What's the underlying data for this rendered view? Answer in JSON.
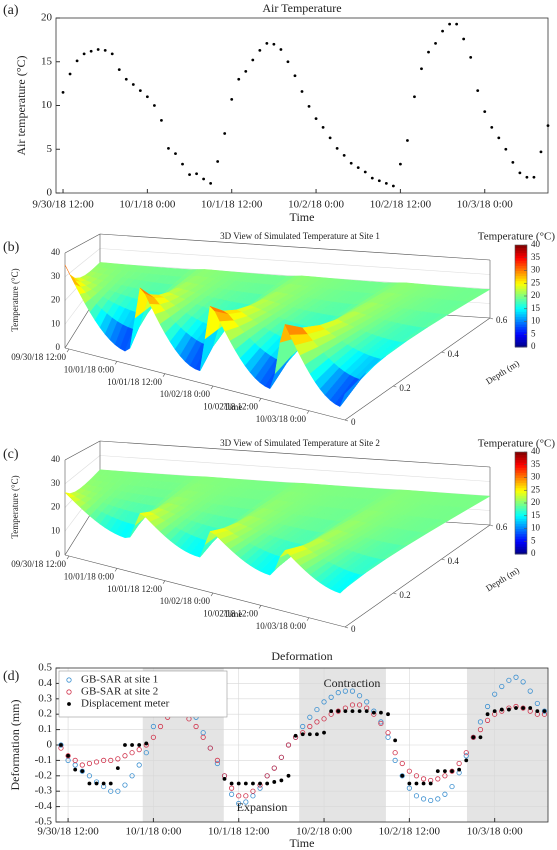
{
  "chart_data": [
    {
      "type": "scatter",
      "label": "(a)",
      "title": "Air Temperature",
      "xlabel": "Time",
      "ylabel": "Air temperature (°C)",
      "color": "#000000",
      "x": [
        12,
        13,
        14,
        15,
        16,
        17,
        18,
        19,
        20,
        21,
        22,
        23,
        24,
        25,
        26,
        27,
        28,
        29,
        30,
        31,
        32,
        33,
        34,
        35,
        36,
        37,
        38,
        39,
        40,
        41,
        42,
        43,
        44,
        45,
        46,
        47,
        48,
        49,
        50,
        51,
        52,
        53,
        54,
        55,
        56,
        57,
        58,
        59,
        60,
        61,
        62,
        63,
        64,
        65,
        66,
        67,
        68,
        69,
        70,
        71,
        72,
        73,
        74,
        75,
        76,
        77,
        78,
        79,
        80,
        81
      ],
      "values": [
        11.5,
        13.6,
        15.1,
        15.9,
        16.2,
        16.4,
        16.3,
        15.9,
        14.1,
        13.0,
        12.4,
        11.7,
        11.0,
        10.0,
        8.3,
        5.1,
        4.5,
        3.3,
        2.1,
        2.2,
        1.6,
        1.1,
        3.6,
        6.8,
        10.7,
        13.0,
        13.9,
        15.2,
        16.3,
        17.1,
        17.0,
        16.4,
        15.0,
        13.4,
        11.6,
        9.9,
        8.5,
        7.5,
        6.3,
        5.1,
        4.3,
        3.4,
        2.9,
        2.4,
        1.7,
        1.4,
        1.1,
        0.8,
        3.3,
        6.0,
        11.0,
        14.2,
        16.1,
        17.1,
        18.5,
        19.3,
        19.3,
        17.6,
        15.5,
        11.7,
        9.3,
        7.5,
        6.3,
        5.0,
        3.5,
        2.3,
        1.8,
        1.8,
        4.7,
        7.7
      ],
      "xlim": [
        11,
        81
      ],
      "ylim": [
        0,
        20
      ],
      "xticks": [
        {
          "value": 12,
          "label": "9/30/18 12:00"
        },
        {
          "value": 24,
          "label": "10/1/18 0:00"
        },
        {
          "value": 36,
          "label": "10/1/18 12:00"
        },
        {
          "value": 48,
          "label": "10/2/18 0:00"
        },
        {
          "value": 60,
          "label": "10/2/18 12:00"
        },
        {
          "value": 72,
          "label": "10/3/18 0:00"
        }
      ],
      "yticks": [
        0,
        5,
        10,
        15,
        20
      ]
    },
    {
      "type": "surface3d",
      "label": "(b)",
      "title": "3D View of Simulated Temperature at Site 1",
      "xlabel": "Time",
      "ylabel": "Depth (m)",
      "zlabel": "Temperature (°C)",
      "colorbar_label": "Temperature (°C)",
      "colormap": "jet",
      "xlim": [
        11,
        81
      ],
      "xticks": [
        {
          "value": 12,
          "label": "09/30/18 12:00"
        },
        {
          "value": 24,
          "label": "10/01/18 0:00"
        },
        {
          "value": 36,
          "label": "10/01/18 12:00"
        },
        {
          "value": 48,
          "label": "10/02/18 0:00"
        },
        {
          "value": 60,
          "label": "10/02/18 12:00"
        },
        {
          "value": 72,
          "label": "10/03/18 0:00"
        }
      ],
      "ylim": [
        0,
        0.6
      ],
      "yticks": [
        0,
        0.2,
        0.4,
        0.6
      ],
      "zlim": [
        0,
        40
      ],
      "zticks": [
        0,
        10,
        20,
        30,
        40
      ],
      "clim": [
        0,
        40
      ],
      "cticks": [
        0,
        5,
        10,
        15,
        20,
        25,
        30,
        35,
        40
      ]
    },
    {
      "type": "surface3d",
      "label": "(c)",
      "title": "3D View of Simulated Temperature at Site 2",
      "xlabel": "Time",
      "ylabel": "Depth (m)",
      "zlabel": "Temperature (°C)",
      "colorbar_label": "Temperature (°C)",
      "colormap": "jet",
      "xlim": [
        11,
        81
      ],
      "xticks": [
        {
          "value": 12,
          "label": "09/30/18 12:00"
        },
        {
          "value": 24,
          "label": "10/01/18 0:00"
        },
        {
          "value": 36,
          "label": "10/01/18 12:00"
        },
        {
          "value": 48,
          "label": "10/02/18 0:00"
        },
        {
          "value": 60,
          "label": "10/02/18 12:00"
        },
        {
          "value": 72,
          "label": "10/03/18 0:00"
        }
      ],
      "ylim": [
        0,
        0.6
      ],
      "yticks": [
        0,
        0.2,
        0.4,
        0.6
      ],
      "zlim": [
        0,
        40
      ],
      "zticks": [
        0,
        10,
        20,
        30,
        40
      ],
      "clim": [
        0,
        40
      ],
      "cticks": [
        0,
        5,
        10,
        15,
        20,
        25,
        30,
        35,
        40
      ]
    },
    {
      "type": "scatter",
      "label": "(d)",
      "title": "Deformation",
      "xlabel": "Time",
      "ylabel": "Deformation (mm)",
      "grid": true,
      "legend": "upper left",
      "annotations": [
        "Contraction",
        "Expansion"
      ],
      "x": [
        11,
        12,
        13,
        14,
        15,
        16,
        17,
        18,
        19,
        20,
        21,
        22,
        23,
        24,
        25,
        26,
        27,
        28,
        29,
        30,
        31,
        32,
        33,
        34,
        35,
        36,
        37,
        38,
        39,
        40,
        41,
        42,
        43,
        44,
        45,
        46,
        47,
        48,
        49,
        50,
        51,
        52,
        53,
        54,
        55,
        56,
        57,
        58,
        59,
        60,
        61,
        62,
        63,
        64,
        65,
        66,
        67,
        68,
        69,
        70,
        71,
        72,
        73,
        74,
        75,
        76,
        77,
        78,
        79
      ],
      "series": [
        {
          "name": "GB-SAR at site 1",
          "color": "#3a8fd0",
          "marker": "open",
          "values": [
            0,
            -0.1,
            -0.13,
            -0.17,
            -0.2,
            -0.24,
            -0.27,
            -0.3,
            -0.3,
            -0.26,
            -0.2,
            -0.13,
            -0.05,
            0.12,
            0.25,
            0.33,
            0.38,
            0.34,
            0.27,
            0.18,
            0.08,
            -0.02,
            -0.12,
            -0.2,
            -0.32,
            -0.38,
            -0.37,
            -0.33,
            -0.28,
            -0.2,
            -0.15,
            -0.08,
            0,
            0.05,
            0.12,
            0.18,
            0.23,
            0.28,
            0.31,
            0.34,
            0.35,
            0.35,
            0.32,
            0.28,
            0.22,
            0.15,
            0.05,
            -0.1,
            -0.2,
            -0.28,
            -0.33,
            -0.35,
            -0.36,
            -0.35,
            -0.32,
            -0.27,
            -0.18,
            -0.07,
            0.05,
            0.15,
            0.25,
            0.33,
            0.38,
            0.42,
            0.44,
            0.41,
            0.35,
            0.27,
            0.22
          ]
        },
        {
          "name": "GB-SAR at site 2",
          "color": "#d0324b",
          "marker": "open",
          "values": [
            -0.02,
            -0.07,
            -0.1,
            -0.13,
            -0.12,
            -0.11,
            -0.1,
            -0.1,
            -0.09,
            -0.07,
            -0.05,
            -0.03,
            0,
            0.05,
            0.12,
            0.18,
            0.2,
            0.2,
            0.17,
            0.12,
            0.05,
            -0.02,
            -0.1,
            -0.2,
            -0.28,
            -0.33,
            -0.33,
            -0.3,
            -0.26,
            -0.2,
            -0.15,
            -0.08,
            0,
            0.05,
            0.08,
            0.12,
            0.15,
            0.17,
            0.2,
            0.22,
            0.24,
            0.26,
            0.26,
            0.24,
            0.2,
            0.14,
            0.08,
            -0.05,
            -0.12,
            -0.17,
            -0.2,
            -0.22,
            -0.23,
            -0.22,
            -0.2,
            -0.17,
            -0.12,
            -0.05,
            0.05,
            0.1,
            0.16,
            0.2,
            0.22,
            0.24,
            0.25,
            0.24,
            0.22,
            0.2,
            0.2
          ]
        },
        {
          "name": "Displacement meter",
          "color": "#000000",
          "marker": "filled",
          "values": [
            0,
            -0.07,
            -0.16,
            -0.17,
            -0.25,
            -0.25,
            -0.25,
            -0.25,
            -0.15,
            0,
            0,
            0,
            0.01,
            0.23,
            0.23,
            0.23,
            0.24,
            0.24,
            0.24,
            0.25,
            0.26,
            0.26,
            0.26,
            -0.22,
            -0.25,
            -0.25,
            -0.25,
            -0.25,
            -0.25,
            -0.25,
            -0.24,
            -0.23,
            -0.2,
            0.06,
            0.07,
            0.07,
            0.07,
            0.08,
            0.22,
            0.22,
            0.22,
            0.22,
            0.22,
            0.22,
            0.21,
            0.21,
            0.2,
            0.03,
            -0.2,
            -0.25,
            -0.25,
            -0.25,
            -0.25,
            -0.17,
            -0.17,
            -0.17,
            -0.16,
            -0.1,
            0.05,
            0.05,
            0.2,
            0.22,
            0.23,
            0.23,
            0.24,
            0.24,
            0.24,
            0.22,
            0.22
          ]
        }
      ],
      "shaded": [
        [
          22.5,
          33.9
        ],
        [
          44.5,
          56.7
        ],
        [
          68.1,
          79.5
        ]
      ],
      "xlim": [
        10.3,
        79.5
      ],
      "ylim": [
        -0.5,
        0.5
      ],
      "xticks": [
        {
          "value": 12,
          "label": "9/30/18 12:00"
        },
        {
          "value": 24,
          "label": "10/1/18 0:00"
        },
        {
          "value": 36,
          "label": "10/1/18 12:00"
        },
        {
          "value": 48,
          "label": "10/2/18 0:00"
        },
        {
          "value": 60,
          "label": "10/2/18 12:00"
        },
        {
          "value": 72,
          "label": "10/3/18 0:00"
        }
      ],
      "yticks": [
        -0.5,
        -0.4,
        -0.3,
        -0.2,
        -0.1,
        0,
        0.1,
        0.2,
        0.3,
        0.4,
        0.5
      ]
    }
  ]
}
